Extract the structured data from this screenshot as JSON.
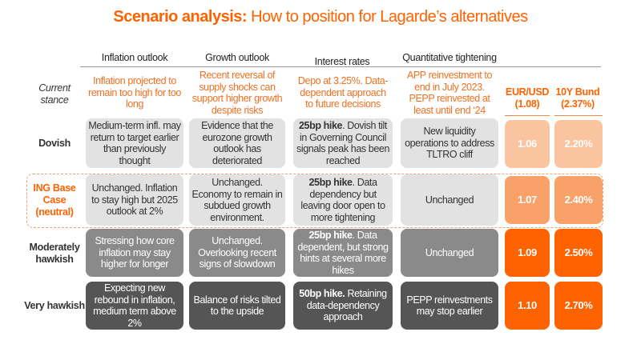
{
  "title": {
    "bold": "Scenario analysis:",
    "rest": " How to position for Lagarde’s alternatives"
  },
  "columns": [
    "Inflation outlook",
    "Growth outlook",
    "Interest rates",
    "Quantitative tightening"
  ],
  "market_headers": [
    {
      "label": "EUR/USD",
      "current": "(1.08)"
    },
    {
      "label": "10Y Bund",
      "current": "(2.37%)"
    }
  ],
  "current_stance": {
    "label": "Current stance",
    "cells": [
      "Inflation projected to remain too high for too long",
      "Recent reversal of supply shocks can support higher growth despite risks",
      "Depo at 3.25%. Data-dependent approach to future decisions",
      "APP reinvestment to end in July 2023. PEPP reinvested at least until end ‘24"
    ]
  },
  "scenarios": [
    {
      "label": "Dovish",
      "inflation": "Medium-term infl. may return to target earlier than previously thought",
      "growth": "Evidence that the eurozone growth outlook has deteriorated",
      "rates_bold": "25bp hike",
      "rates_rest": ". Dovish tilt in Governing Council signals peak has been reached",
      "qt": "New liquidity operations to address TLTRO cliff",
      "eurusd": "1.06",
      "bund": "2.20%"
    },
    {
      "label": "ING Base Case (neutral)",
      "inflation": "Unchanged. Inflation to stay high but 2025 outlook at 2%",
      "growth": "Unchanged. Economy to remain in subdued growth environment.",
      "rates_bold": "25bp hike",
      "rates_rest": ". Data dependency but leaving door open to more tightening",
      "qt": "Unchanged",
      "eurusd": "1.07",
      "bund": "2.40%"
    },
    {
      "label": "Moderately hawkish",
      "inflation": "Stressing how core inflation may stay higher for longer",
      "growth": "Unchanged. Overlooking recent signs of slowdown",
      "rates_bold": "25bp hike",
      "rates_rest": ". Data dependent, but strong hints at several more hikes",
      "qt": "Unchanged",
      "eurusd": "1.09",
      "bund": "2.50%"
    },
    {
      "label": "Very hawkish",
      "inflation": "Expecting new rebound in inflation, medium term above 2%",
      "growth": "Balance of risks tilted to the upside",
      "rates_bold": "50bp hike.",
      "rates_rest": " Retaining data-dependency approach",
      "qt": "PEPP reinvestments may stop earlier",
      "eurusd": "1.10",
      "bund": "2.70%"
    }
  ],
  "colors": {
    "accent": "#ff6200",
    "dovish_market": "#fbc4a0",
    "base_market": "#f8a26a",
    "hawkish_market": "#ff6200"
  }
}
